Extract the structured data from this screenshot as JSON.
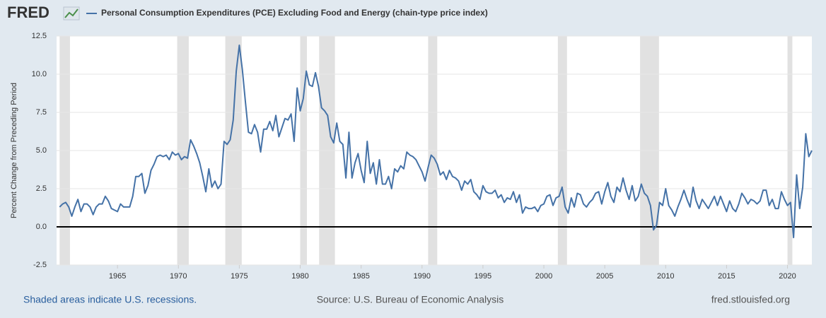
{
  "brand": "FRED",
  "chart_data": {
    "type": "line",
    "series": [
      {
        "name": "Personal Consumption Expenditures (PCE) Excluding Food and Energy (chain-type price index)",
        "color": "#4572a7",
        "values": [
          1.3,
          1.5,
          1.6,
          1.3,
          0.7,
          1.3,
          1.8,
          1.0,
          1.5,
          1.5,
          1.3,
          0.8,
          1.3,
          1.5,
          1.5,
          2.0,
          1.7,
          1.2,
          1.1,
          1.0,
          1.5,
          1.3,
          1.3,
          1.3,
          2.0,
          3.3,
          3.3,
          3.5,
          2.2,
          2.7,
          3.7,
          4.1,
          4.6,
          4.7,
          4.6,
          4.7,
          4.4,
          4.9,
          4.7,
          4.8,
          4.4,
          4.6,
          4.5,
          5.7,
          5.3,
          4.8,
          4.2,
          3.3,
          2.3,
          3.8,
          2.6,
          3.0,
          2.5,
          2.8,
          5.6,
          5.4,
          5.7,
          7.0,
          10.2,
          11.9,
          10.3,
          8.2,
          6.2,
          6.1,
          6.7,
          6.2,
          4.9,
          6.4,
          6.4,
          6.9,
          6.3,
          7.3,
          5.9,
          6.5,
          7.1,
          7.0,
          7.4,
          5.6,
          9.1,
          7.6,
          8.4,
          10.2,
          9.3,
          9.2,
          10.1,
          9.2,
          7.8,
          7.6,
          7.3,
          5.9,
          5.5,
          6.8,
          5.6,
          5.4,
          3.2,
          6.2,
          3.2,
          4.2,
          4.8,
          3.7,
          2.9,
          5.6,
          3.5,
          4.2,
          2.8,
          4.4,
          2.8,
          2.8,
          3.3,
          2.5,
          3.8,
          3.6,
          4.0,
          3.8,
          4.9,
          4.7,
          4.6,
          4.4,
          4.0,
          3.6,
          3.0,
          3.9,
          4.7,
          4.5,
          4.1,
          3.4,
          3.6,
          3.1,
          3.7,
          3.3,
          3.2,
          3.0,
          2.4,
          3.0,
          2.8,
          3.1,
          2.3,
          2.1,
          1.8,
          2.7,
          2.3,
          2.2,
          2.2,
          2.4,
          1.9,
          2.1,
          1.6,
          1.9,
          1.8,
          2.3,
          1.6,
          2.1,
          0.9,
          1.3,
          1.2,
          1.2,
          1.3,
          1.0,
          1.4,
          1.5,
          2.0,
          2.1,
          1.4,
          1.9,
          2.0,
          2.6,
          1.3,
          0.9,
          1.9,
          1.3,
          2.2,
          2.1,
          1.5,
          1.3,
          1.6,
          1.8,
          2.2,
          2.3,
          1.5,
          2.3,
          2.9,
          2.0,
          1.6,
          2.6,
          2.3,
          3.2,
          2.4,
          1.8,
          2.7,
          1.7,
          2.0,
          2.8,
          2.2,
          2.0,
          1.4,
          -0.2,
          0.1,
          1.6,
          1.4,
          2.5,
          1.4,
          1.1,
          0.7,
          1.3,
          1.8,
          2.4,
          1.8,
          1.3,
          2.6,
          1.7,
          1.2,
          1.8,
          1.5,
          1.2,
          1.6,
          2.0,
          1.4,
          2.0,
          1.5,
          1.0,
          1.7,
          1.2,
          1.0,
          1.5,
          2.2,
          1.9,
          1.5,
          1.8,
          1.7,
          1.5,
          1.7,
          2.4,
          2.4,
          1.4,
          1.8,
          1.2,
          1.2,
          2.3,
          1.8,
          1.4,
          1.6,
          -0.7,
          3.4,
          1.2,
          2.6,
          6.1,
          4.6,
          5.0
        ]
      }
    ],
    "x": [
      1960.25,
      1960.5,
      1960.75,
      1961,
      1961.25,
      1961.5,
      1961.75,
      1962,
      1962.25,
      1962.5,
      1962.75,
      1963,
      1963.25,
      1963.5,
      1963.75,
      1964,
      1964.25,
      1964.5,
      1964.75,
      1965,
      1965.25,
      1965.5,
      1965.75,
      1966,
      1966.25,
      1966.5,
      1966.75,
      1967,
      1967.25,
      1967.5,
      1967.75,
      1968,
      1968.25,
      1968.5,
      1968.75,
      1969,
      1969.25,
      1969.5,
      1969.75,
      1970,
      1970.25,
      1970.5,
      1970.75,
      1971,
      1971.25,
      1971.5,
      1971.75,
      1972,
      1972.25,
      1972.5,
      1972.75,
      1973,
      1973.25,
      1973.5,
      1973.75,
      1974,
      1974.25,
      1974.5,
      1974.75,
      1975,
      1975.25,
      1975.5,
      1975.75,
      1976,
      1976.25,
      1976.5,
      1976.75,
      1977,
      1977.25,
      1977.5,
      1977.75,
      1978,
      1978.25,
      1978.5,
      1978.75,
      1979,
      1979.25,
      1979.5,
      1979.75,
      1980,
      1980.25,
      1980.5,
      1980.75,
      1981,
      1981.25,
      1981.5,
      1981.75,
      1982,
      1982.25,
      1982.5,
      1982.75,
      1983,
      1983.25,
      1983.5,
      1983.75,
      1984,
      1984.25,
      1984.5,
      1984.75,
      1985,
      1985.25,
      1985.5,
      1985.75,
      1986,
      1986.25,
      1986.5,
      1986.75,
      1987,
      1987.25,
      1987.5,
      1987.75,
      1988,
      1988.25,
      1988.5,
      1988.75,
      1989,
      1989.25,
      1989.5,
      1989.75,
      1990,
      1990.25,
      1990.5,
      1990.75,
      1991,
      1991.25,
      1991.5,
      1991.75,
      1992,
      1992.25,
      1992.5,
      1992.75,
      1993,
      1993.25,
      1993.5,
      1993.75,
      1994,
      1994.25,
      1994.5,
      1994.75,
      1995,
      1995.25,
      1995.5,
      1995.75,
      1996,
      1996.25,
      1996.5,
      1996.75,
      1997,
      1997.25,
      1997.5,
      1997.75,
      1998,
      1998.25,
      1998.5,
      1998.75,
      1999,
      1999.25,
      1999.5,
      1999.75,
      2000,
      2000.25,
      2000.5,
      2000.75,
      2001,
      2001.25,
      2001.5,
      2001.75,
      2002,
      2002.25,
      2002.5,
      2002.75,
      2003,
      2003.25,
      2003.5,
      2003.75,
      2004,
      2004.25,
      2004.5,
      2004.75,
      2005,
      2005.25,
      2005.5,
      2005.75,
      2006,
      2006.25,
      2006.5,
      2006.75,
      2007,
      2007.25,
      2007.5,
      2007.75,
      2008,
      2008.25,
      2008.5,
      2008.75,
      2009,
      2009.25,
      2009.5,
      2009.75,
      2010,
      2010.25,
      2010.5,
      2010.75,
      2011,
      2011.25,
      2011.5,
      2011.75,
      2012,
      2012.25,
      2012.5,
      2012.75,
      2013,
      2013.25,
      2013.5,
      2013.75,
      2014,
      2014.25,
      2014.5,
      2014.75,
      2015,
      2015.25,
      2015.5,
      2015.75,
      2016,
      2016.25,
      2016.5,
      2016.75,
      2017,
      2017.25,
      2017.5,
      2017.75,
      2018,
      2018.25,
      2018.5,
      2018.75,
      2019,
      2019.25,
      2019.5,
      2019.75,
      2020,
      2020.25,
      2020.5,
      2020.75,
      2021,
      2021.25,
      2021.5,
      2021.75,
      2022
    ],
    "recessions": [
      [
        1960.25,
        1961.1
      ],
      [
        1969.9,
        1970.85
      ],
      [
        1973.85,
        1975.2
      ],
      [
        1980.0,
        1980.55
      ],
      [
        1981.55,
        1982.85
      ],
      [
        1990.5,
        1991.25
      ],
      [
        2001.15,
        2001.9
      ],
      [
        2007.9,
        2009.45
      ],
      [
        2020.0,
        2020.4
      ]
    ],
    "recession_color": "#e1e1e1",
    "xlim": [
      1960,
      2022
    ],
    "xticks": [
      1965,
      1970,
      1975,
      1980,
      1985,
      1990,
      1995,
      2000,
      2005,
      2010,
      2015,
      2020
    ],
    "ylim": [
      -2.5,
      12.5
    ],
    "yticks": [
      -2.5,
      {
        "value": 0,
        "label": "0.0"
      },
      2.5,
      {
        "value": 5,
        "label": "5.0"
      },
      7.5,
      {
        "value": 10,
        "label": "10.0"
      },
      12.5
    ],
    "grid": true,
    "ylabel": "Percent Change from Preceding Period",
    "note": "Shaded areas indicate U.S. recessions.",
    "source": "Source: U.S. Bureau of Economic Analysis",
    "site": "fred.stlouisfed.org"
  }
}
